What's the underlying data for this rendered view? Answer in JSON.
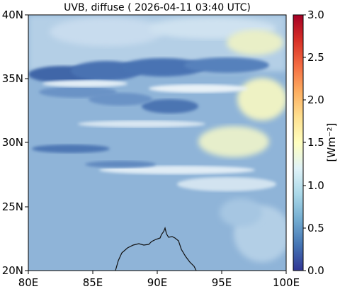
{
  "title": "UVB, diffuse ( 2026-04-11 03:40 UTC)",
  "map": {
    "lon_range": [
      80,
      100
    ],
    "lat_range": [
      20,
      40
    ],
    "x_ticks": [
      "80E",
      "85E",
      "90E",
      "95E",
      "100E"
    ],
    "y_ticks": [
      "40N",
      "35N",
      "30N",
      "25N",
      "20N"
    ]
  },
  "colorbar": {
    "label": "[Wm⁻²]",
    "range": [
      0.0,
      3.0
    ],
    "ticks": [
      "3.0",
      "2.5",
      "2.0",
      "1.5",
      "1.0",
      "0.5",
      "0.0"
    ],
    "colormap": "RdYlBu_r",
    "stops": [
      "#313695",
      "#4575b4",
      "#74add1",
      "#abd9e9",
      "#e0f3f8",
      "#ffffbf",
      "#fee090",
      "#fdae61",
      "#f46d43",
      "#d73027",
      "#a50026"
    ]
  },
  "background_color": "#8fb4d8"
}
